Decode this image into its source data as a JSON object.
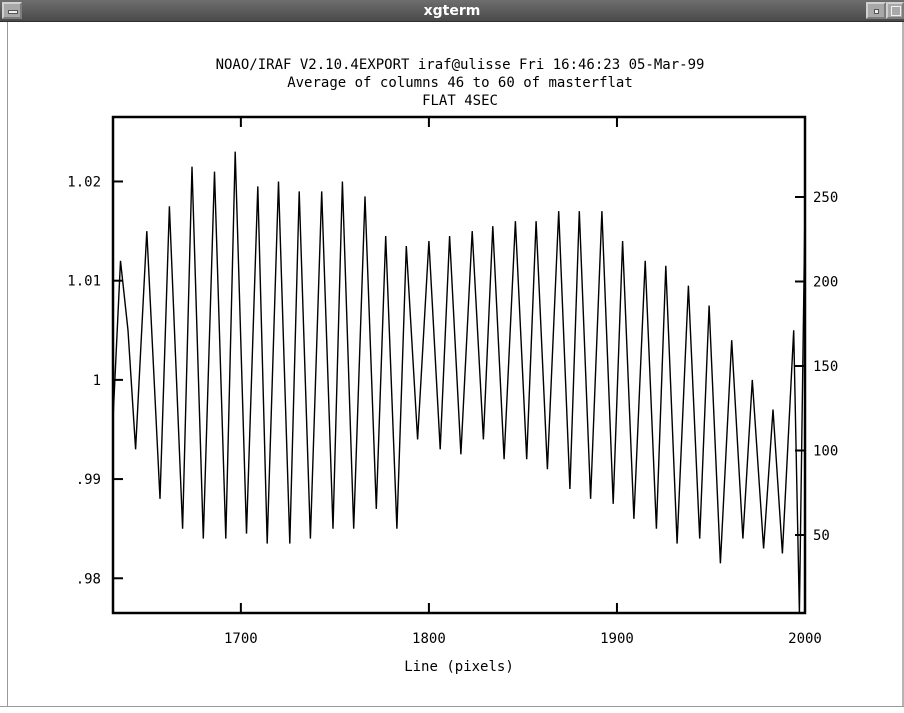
{
  "window": {
    "title": "xgterm"
  },
  "plot_header": {
    "line1": "NOAO/IRAF V2.10.4EXPORT iraf@ulisse Fri 16:46:23 05-Mar-99",
    "line2": "Average of columns 46 to 60 of masterflat",
    "line3": "FLAT 4SEC"
  },
  "chart_data": {
    "type": "line",
    "title": "FLAT 4SEC",
    "xlabel": "Line (pixels)",
    "ylabel": "",
    "xlim": [
      1632,
      2000
    ],
    "ylim": [
      0.9765,
      1.0265
    ],
    "right_axis_ticks": [
      "50",
      "100",
      "150",
      "200",
      "250"
    ],
    "x_ticks": [
      "1700",
      "1800",
      "1900",
      "2000"
    ],
    "y_ticks": [
      ".98",
      ".99",
      "1",
      "1.01",
      "1.02"
    ],
    "grid": false,
    "series": [
      {
        "points": [
          [
            1632,
            0.996
          ],
          [
            1636,
            1.012
          ],
          [
            1640,
            1.005
          ],
          [
            1644,
            0.993
          ],
          [
            1650,
            1.015
          ],
          [
            1657,
            0.988
          ],
          [
            1662,
            1.0175
          ],
          [
            1669,
            0.985
          ],
          [
            1674,
            1.0215
          ],
          [
            1680,
            0.984
          ],
          [
            1686,
            1.021
          ],
          [
            1692,
            0.984
          ],
          [
            1697,
            1.023
          ],
          [
            1703,
            0.9845
          ],
          [
            1709,
            1.0195
          ],
          [
            1714,
            0.9835
          ],
          [
            1720,
            1.02
          ],
          [
            1726,
            0.9835
          ],
          [
            1731,
            1.019
          ],
          [
            1737,
            0.984
          ],
          [
            1743,
            1.019
          ],
          [
            1749,
            0.985
          ],
          [
            1754,
            1.02
          ],
          [
            1760,
            0.985
          ],
          [
            1766,
            1.0185
          ],
          [
            1772,
            0.987
          ],
          [
            1777,
            1.0145
          ],
          [
            1783,
            0.985
          ],
          [
            1788,
            1.0135
          ],
          [
            1794,
            0.994
          ],
          [
            1800,
            1.014
          ],
          [
            1806,
            0.993
          ],
          [
            1811,
            1.0145
          ],
          [
            1817,
            0.9925
          ],
          [
            1823,
            1.015
          ],
          [
            1829,
            0.994
          ],
          [
            1834,
            1.0155
          ],
          [
            1840,
            0.992
          ],
          [
            1846,
            1.016
          ],
          [
            1852,
            0.992
          ],
          [
            1857,
            1.016
          ],
          [
            1863,
            0.991
          ],
          [
            1869,
            1.017
          ],
          [
            1875,
            0.989
          ],
          [
            1880,
            1.017
          ],
          [
            1886,
            0.988
          ],
          [
            1892,
            1.017
          ],
          [
            1898,
            0.9875
          ],
          [
            1903,
            1.014
          ],
          [
            1909,
            0.986
          ],
          [
            1915,
            1.012
          ],
          [
            1921,
            0.985
          ],
          [
            1926,
            1.0115
          ],
          [
            1932,
            0.9835
          ],
          [
            1938,
            1.0095
          ],
          [
            1944,
            0.984
          ],
          [
            1949,
            1.0075
          ],
          [
            1955,
            0.9815
          ],
          [
            1961,
            1.004
          ],
          [
            1967,
            0.984
          ],
          [
            1972,
            1.0
          ],
          [
            1978,
            0.983
          ],
          [
            1983,
            0.997
          ],
          [
            1988,
            0.9825
          ],
          [
            1994,
            1.005
          ],
          [
            1997,
            0.9765
          ],
          [
            2000,
            1.0175
          ]
        ]
      }
    ]
  }
}
